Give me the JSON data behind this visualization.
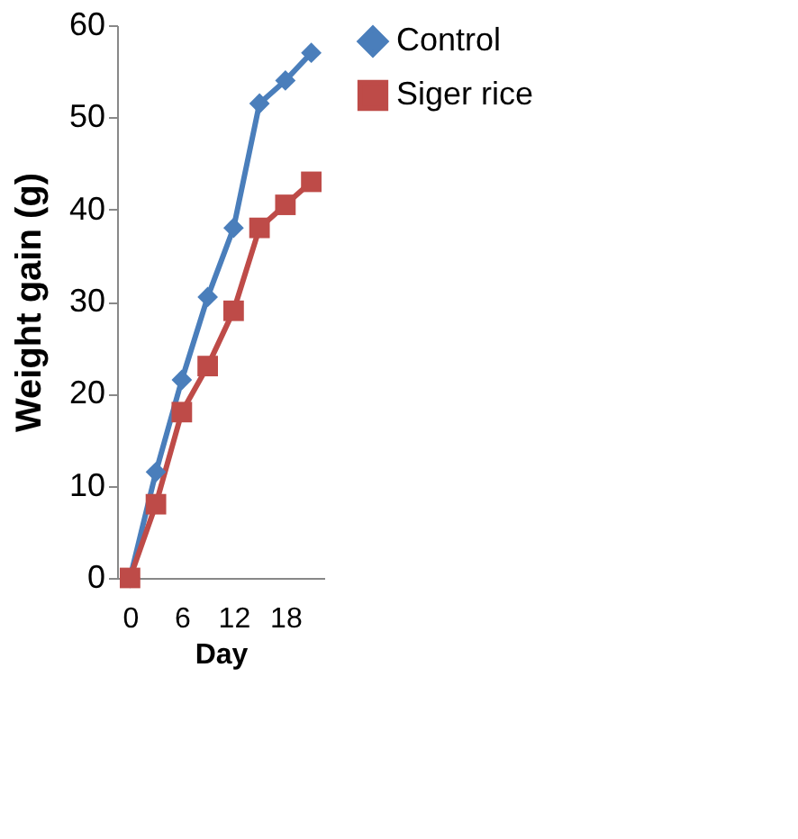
{
  "chart_data": {
    "type": "line",
    "xlabel": "Day",
    "ylabel": "Weight gain (g)",
    "categories": [
      "0",
      null,
      "6",
      null,
      "12",
      null,
      "18",
      null
    ],
    "ylim": [
      0,
      60
    ],
    "yticks": [
      0,
      10,
      20,
      30,
      40,
      50,
      60
    ],
    "grid": false,
    "legend": "right",
    "line_style": "solid",
    "series": [
      {
        "name": "Control",
        "color": "#4a7ebb",
        "marker": "diamond",
        "values": [
          0,
          11.5,
          21.5,
          30.5,
          38,
          51.5,
          54,
          57
        ]
      },
      {
        "name": "Siger rice",
        "color": "#be4b48",
        "marker": "square",
        "values": [
          0,
          8,
          18,
          23,
          29,
          38,
          40.5,
          43
        ]
      }
    ]
  }
}
